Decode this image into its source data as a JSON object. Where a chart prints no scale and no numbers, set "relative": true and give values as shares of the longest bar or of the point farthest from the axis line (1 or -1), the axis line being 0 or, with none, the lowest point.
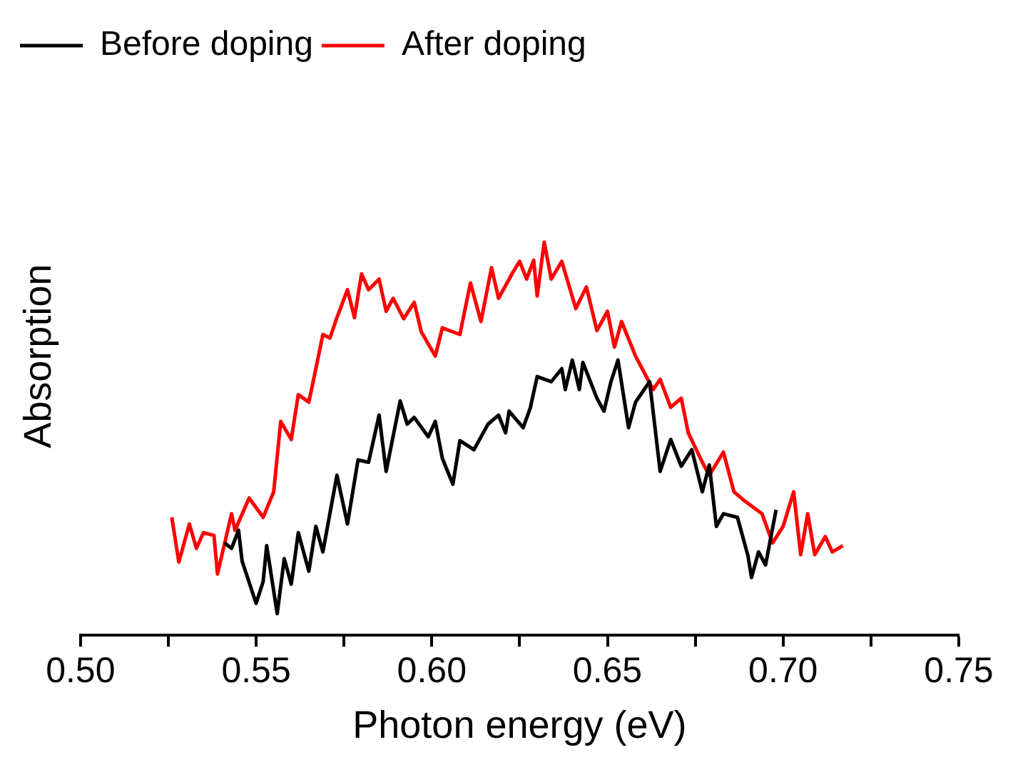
{
  "chart_data": {
    "type": "line",
    "xlabel": "Photon energy (eV)",
    "ylabel": "Absorption",
    "relative": true,
    "legend": "top left",
    "marker": "none",
    "line_style": "solid",
    "grid": false,
    "tick_labels": "x",
    "xlim": [
      0.5,
      0.75
    ],
    "xticks": [
      {
        "value": 0.5,
        "label": "0.50"
      },
      {
        "value": 0.525,
        "label": null
      },
      0.55,
      {
        "value": 0.575,
        "label": null
      },
      {
        "value": 0.6,
        "label": "0.60"
      },
      {
        "value": 0.625,
        "label": null
      },
      0.65,
      {
        "value": 0.675,
        "label": null
      },
      {
        "value": 0.7,
        "label": "0.70"
      },
      {
        "value": 0.725,
        "label": null
      },
      0.75
    ],
    "series": [
      {
        "name": "Before doping",
        "color": "#000000",
        "x": [
          0.541,
          0.543,
          0.545,
          0.546,
          0.55,
          0.552,
          0.553,
          0.556,
          0.558,
          0.56,
          0.562,
          0.565,
          0.567,
          0.569,
          0.573,
          0.576,
          0.579,
          0.582,
          0.585,
          0.587,
          0.591,
          0.593,
          0.595,
          0.599,
          0.601,
          0.603,
          0.606,
          0.608,
          0.612,
          0.616,
          0.619,
          0.621,
          0.622,
          0.626,
          0.628,
          0.63,
          0.634,
          0.637,
          0.638,
          0.64,
          0.642,
          0.643,
          0.647,
          0.649,
          0.651,
          0.653,
          0.656,
          0.658,
          0.662,
          0.665,
          0.668,
          0.671,
          0.674,
          0.677,
          0.679,
          0.681,
          0.683,
          0.687,
          0.69,
          0.691,
          0.693,
          0.695,
          0.698
        ],
        "values": [
          0.235,
          0.221,
          0.267,
          0.189,
          0.081,
          0.137,
          0.228,
          0.055,
          0.195,
          0.13,
          0.261,
          0.163,
          0.277,
          0.212,
          0.407,
          0.283,
          0.446,
          0.44,
          0.56,
          0.417,
          0.596,
          0.537,
          0.554,
          0.505,
          0.544,
          0.45,
          0.384,
          0.495,
          0.472,
          0.537,
          0.56,
          0.515,
          0.57,
          0.528,
          0.577,
          0.658,
          0.645,
          0.678,
          0.625,
          0.7,
          0.625,
          0.694,
          0.603,
          0.57,
          0.645,
          0.7,
          0.528,
          0.593,
          0.645,
          0.417,
          0.498,
          0.43,
          0.472,
          0.365,
          0.433,
          0.277,
          0.309,
          0.3,
          0.202,
          0.147,
          0.212,
          0.179,
          0.319
        ]
      },
      {
        "name": "After doping",
        "color": "#ff0000",
        "x": [
          0.526,
          0.528,
          0.531,
          0.533,
          0.535,
          0.538,
          0.539,
          0.543,
          0.544,
          0.548,
          0.552,
          0.555,
          0.557,
          0.56,
          0.562,
          0.565,
          0.567,
          0.569,
          0.571,
          0.573,
          0.576,
          0.578,
          0.58,
          0.582,
          0.585,
          0.587,
          0.589,
          0.592,
          0.595,
          0.597,
          0.601,
          0.603,
          0.605,
          0.608,
          0.611,
          0.614,
          0.617,
          0.619,
          0.623,
          0.625,
          0.627,
          0.629,
          0.63,
          0.632,
          0.634,
          0.637,
          0.641,
          0.644,
          0.647,
          0.65,
          0.652,
          0.654,
          0.658,
          0.663,
          0.665,
          0.668,
          0.671,
          0.673,
          0.677,
          0.679,
          0.683,
          0.686,
          0.689,
          0.694,
          0.697,
          0.7,
          0.703,
          0.705,
          0.707,
          0.709,
          0.712,
          0.714,
          0.717
        ],
        "values": [
          0.3,
          0.186,
          0.283,
          0.221,
          0.261,
          0.254,
          0.156,
          0.309,
          0.267,
          0.349,
          0.3,
          0.365,
          0.544,
          0.498,
          0.612,
          0.593,
          0.678,
          0.765,
          0.756,
          0.808,
          0.879,
          0.808,
          0.919,
          0.879,
          0.906,
          0.824,
          0.857,
          0.805,
          0.847,
          0.772,
          0.71,
          0.782,
          0.775,
          0.765,
          0.896,
          0.798,
          0.935,
          0.857,
          0.922,
          0.951,
          0.906,
          0.954,
          0.863,
          1.0,
          0.906,
          0.951,
          0.831,
          0.886,
          0.775,
          0.824,
          0.733,
          0.798,
          0.71,
          0.625,
          0.651,
          0.58,
          0.603,
          0.515,
          0.44,
          0.407,
          0.466,
          0.365,
          0.342,
          0.309,
          0.235,
          0.277,
          0.365,
          0.205,
          0.309,
          0.205,
          0.251,
          0.212,
          0.228
        ]
      }
    ]
  }
}
